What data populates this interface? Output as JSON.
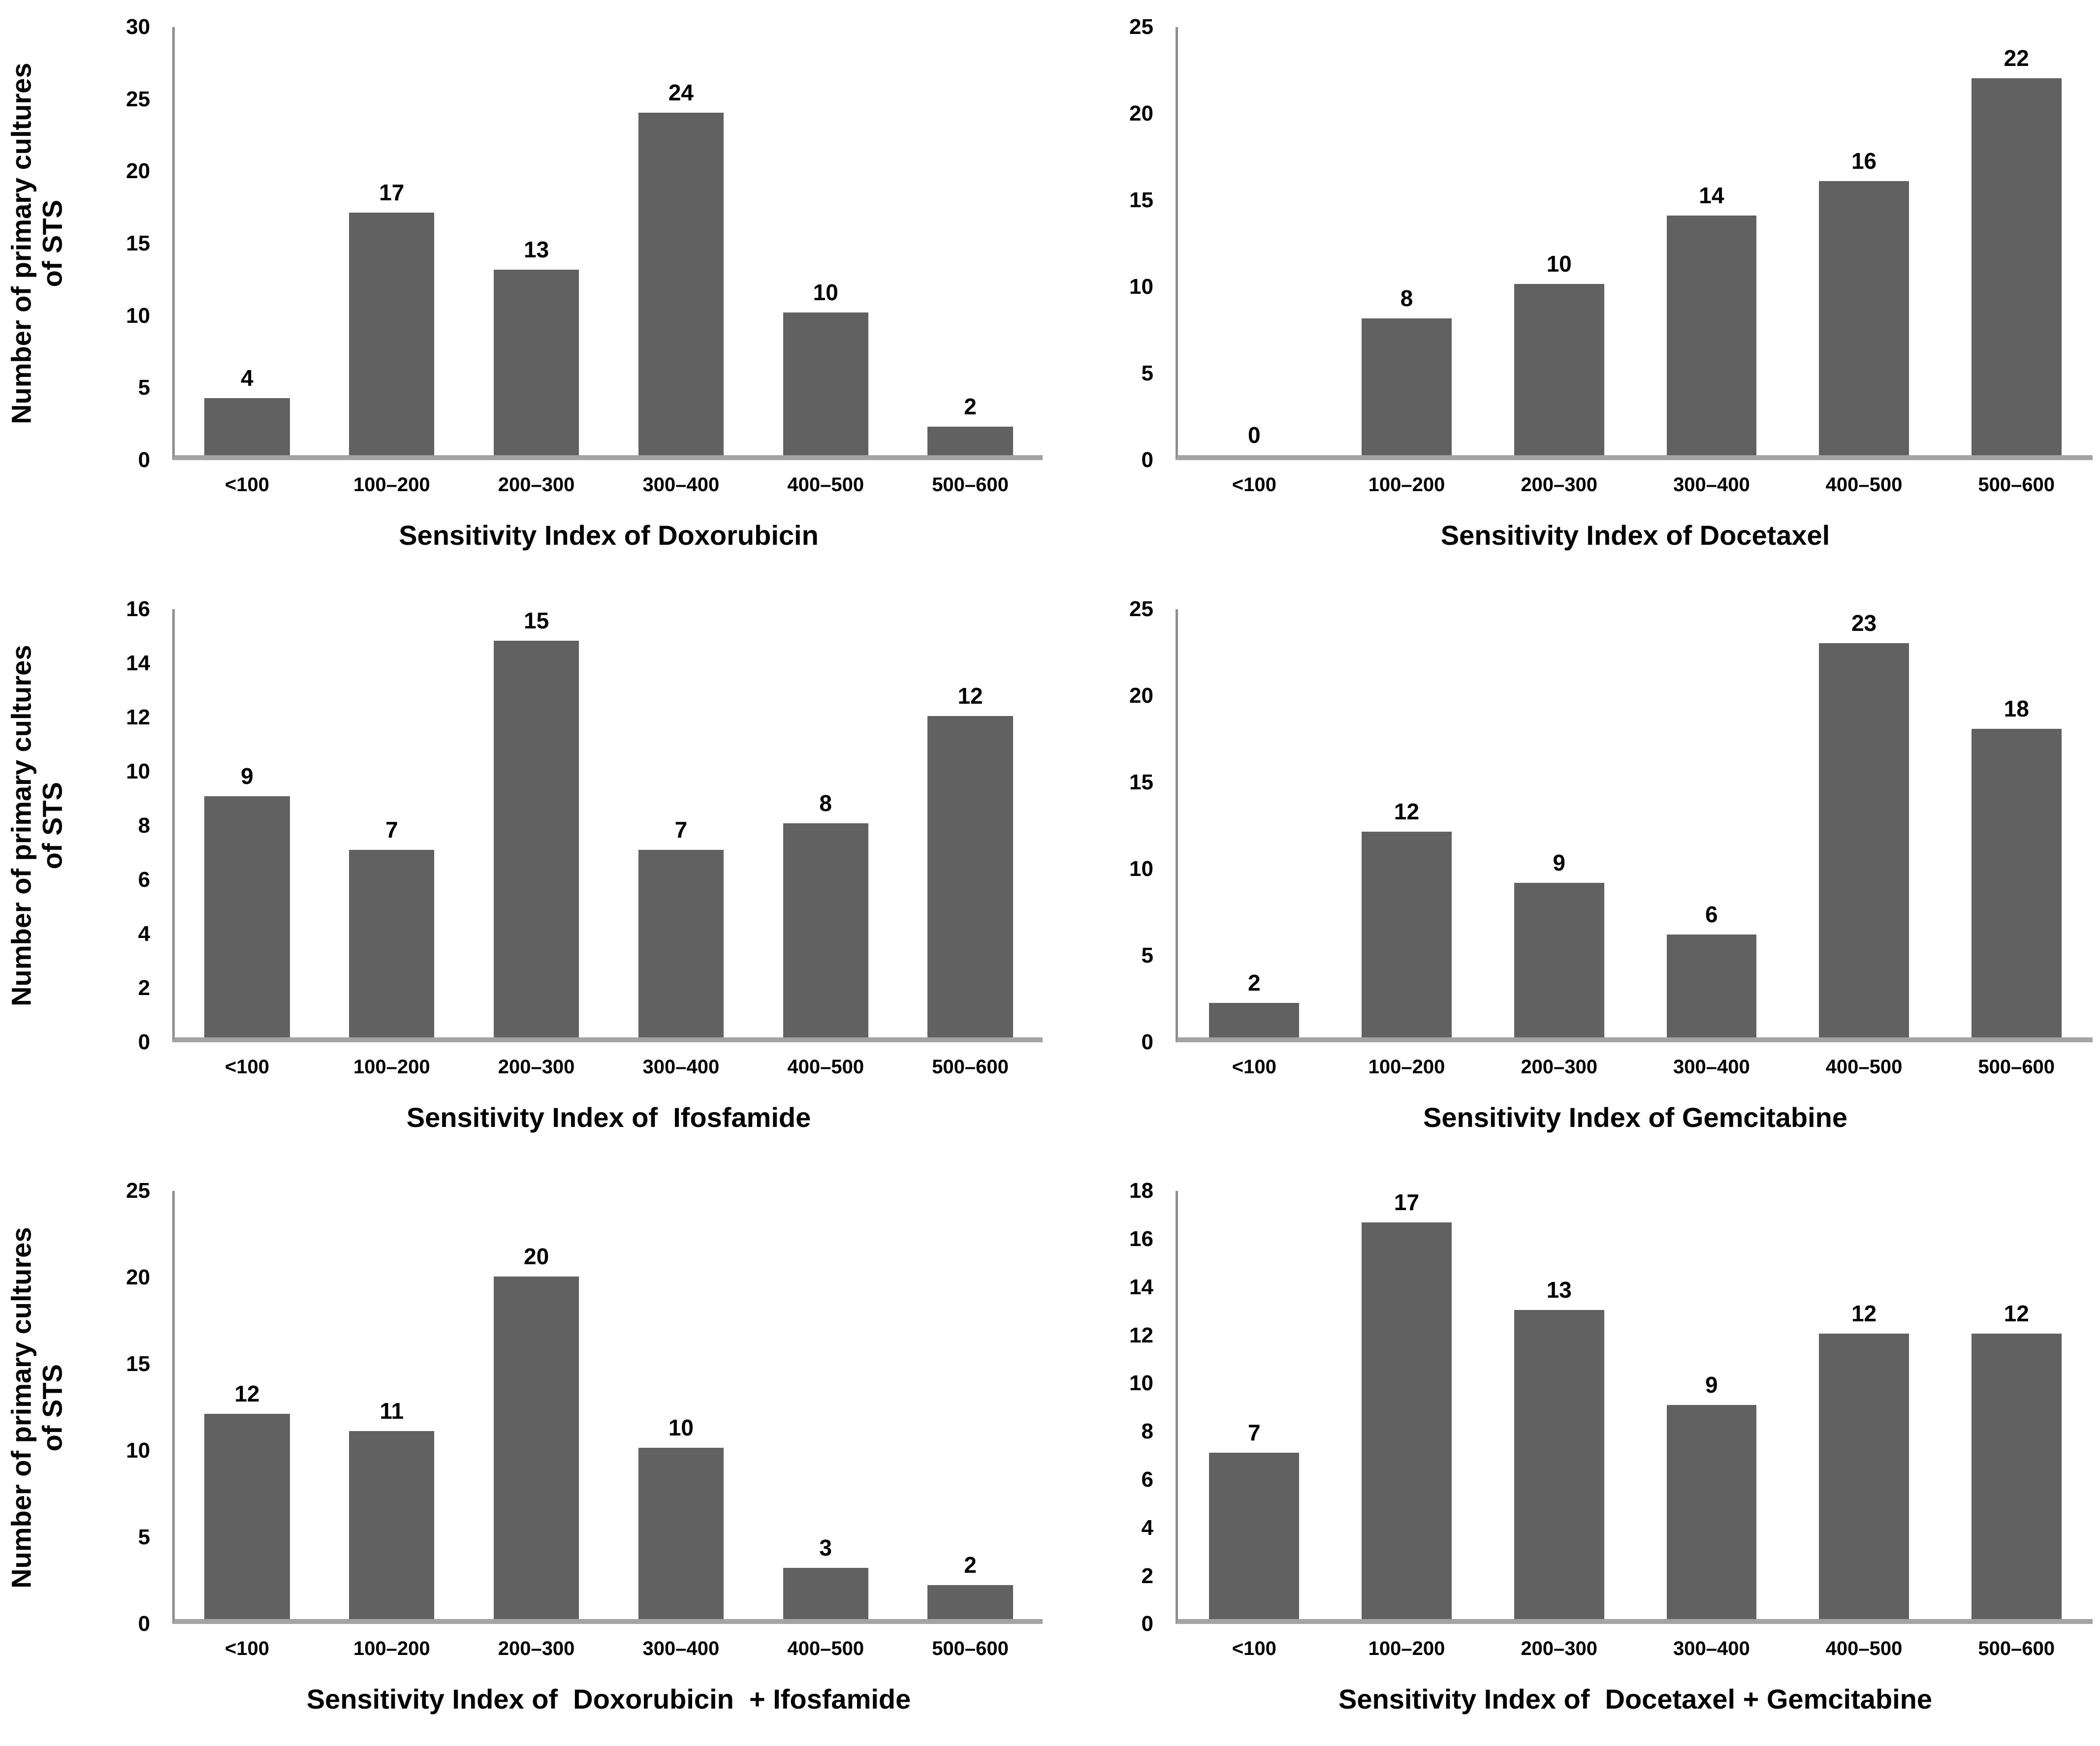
{
  "figure": {
    "ylabel": {
      "text": "Number of primary cultures\nof STS"
    },
    "bar_color": "#616161",
    "axis_line_color": "#8f8f8f",
    "baseline_color": "#a3a3a3",
    "background_color": "#ffffff",
    "text_color": "#000000"
  },
  "chart_data": [
    {
      "type": "bar",
      "title": "Sensitivity Index of Doxorubicin",
      "ylabel": "Number of primary cultures of STS",
      "categories": [
        "<100",
        "100–200",
        "200–300",
        "300–400",
        "400–500",
        "500–600"
      ],
      "values": [
        4,
        17,
        13,
        24,
        10,
        2
      ],
      "ylim": [
        0,
        30
      ],
      "yticks": [
        0,
        5,
        10,
        15,
        20,
        25,
        30
      ],
      "legend": "none",
      "grid": "off"
    },
    {
      "type": "bar",
      "title": "Sensitivity Index of Docetaxel",
      "ylabel": "",
      "categories": [
        "<100",
        "100–200",
        "200–300",
        "300–400",
        "400–500",
        "500–600"
      ],
      "values": [
        0,
        8,
        10,
        14,
        16,
        22
      ],
      "ylim": [
        0,
        25
      ],
      "yticks": [
        0,
        5,
        10,
        15,
        20,
        25
      ],
      "legend": "none",
      "grid": "off"
    },
    {
      "type": "bar",
      "title": "Sensitivity Index of  Ifosfamide",
      "ylabel": "Number of primary cultures of STS",
      "categories": [
        "<100",
        "100–200",
        "200–300",
        "300–400",
        "400–500",
        "500–600"
      ],
      "values": [
        9,
        7,
        15,
        7,
        8,
        12
      ],
      "ylim": [
        0,
        16
      ],
      "yticks": [
        0,
        2,
        4,
        6,
        8,
        10,
        12,
        14,
        16
      ],
      "legend": "none",
      "grid": "off"
    },
    {
      "type": "bar",
      "title": "Sensitivity Index of Gemcitabine",
      "ylabel": "",
      "categories": [
        "<100",
        "100–200",
        "200–300",
        "300–400",
        "400–500",
        "500–600"
      ],
      "values": [
        2,
        12,
        9,
        6,
        23,
        18
      ],
      "ylim": [
        0,
        25
      ],
      "yticks": [
        0,
        5,
        10,
        15,
        20,
        25
      ],
      "legend": "none",
      "grid": "off"
    },
    {
      "type": "bar",
      "title": "Sensitivity Index of  Doxorubicin  + Ifosfamide",
      "ylabel": "Number of primary cultures of STS",
      "categories": [
        "<100",
        "100–200",
        "200–300",
        "300–400",
        "400–500",
        "500–600"
      ],
      "values": [
        12,
        11,
        20,
        10,
        3,
        2
      ],
      "ylim": [
        0,
        25
      ],
      "yticks": [
        0,
        5,
        10,
        15,
        20,
        25
      ],
      "legend": "none",
      "grid": "off"
    },
    {
      "type": "bar",
      "title": "Sensitivity Index of  Docetaxel + Gemcitabine",
      "ylabel": "",
      "categories": [
        "<100",
        "100–200",
        "200–300",
        "300–400",
        "400–500",
        "500–600"
      ],
      "values": [
        7,
        17,
        13,
        9,
        12,
        12
      ],
      "ylim": [
        0,
        18
      ],
      "yticks": [
        0,
        2,
        4,
        6,
        8,
        10,
        12,
        14,
        16,
        18
      ],
      "legend": "none",
      "grid": "off"
    }
  ]
}
